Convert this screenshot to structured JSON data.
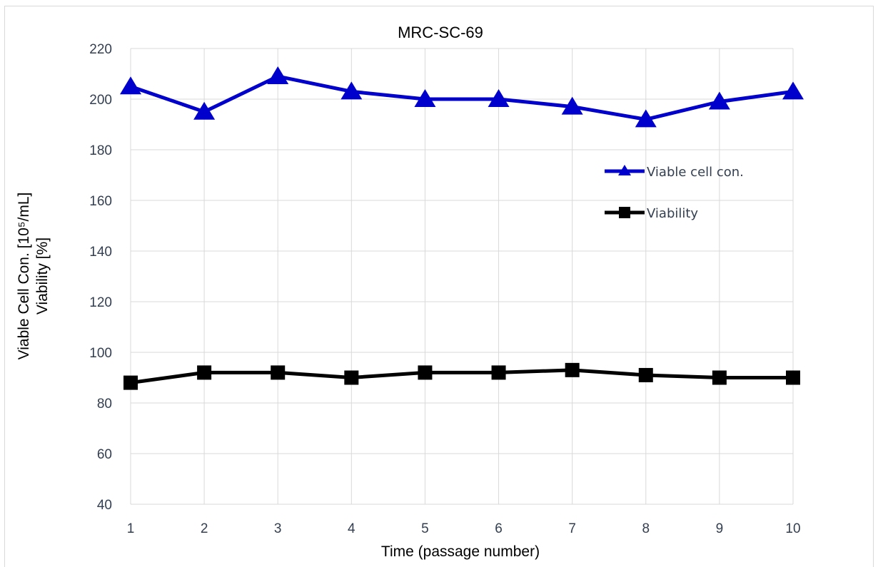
{
  "chart_data": {
    "type": "line",
    "title": "MRC-SC-69",
    "xlabel": "Time  (passage number)",
    "ylabel": "Viable Cell Con.  [10⁵/mL]",
    "ylabel2": "Viability  [%]",
    "x": [
      1,
      2,
      3,
      4,
      5,
      6,
      7,
      8,
      9,
      10
    ],
    "xlim": [
      1,
      10
    ],
    "ylim": [
      40,
      220
    ],
    "yticks": [
      40,
      60,
      80,
      100,
      120,
      140,
      160,
      180,
      200,
      220
    ],
    "grid": true,
    "legend_position": "right",
    "series": [
      {
        "name": "Viable cell con.",
        "color": "#0000cc",
        "marker": "triangle",
        "values": [
          205,
          195,
          209,
          203,
          200,
          200,
          197,
          192,
          199,
          203
        ]
      },
      {
        "name": "Viability",
        "color": "#000000",
        "marker": "square",
        "values": [
          88,
          92,
          92,
          90,
          92,
          92,
          93,
          91,
          90,
          90
        ]
      }
    ]
  }
}
